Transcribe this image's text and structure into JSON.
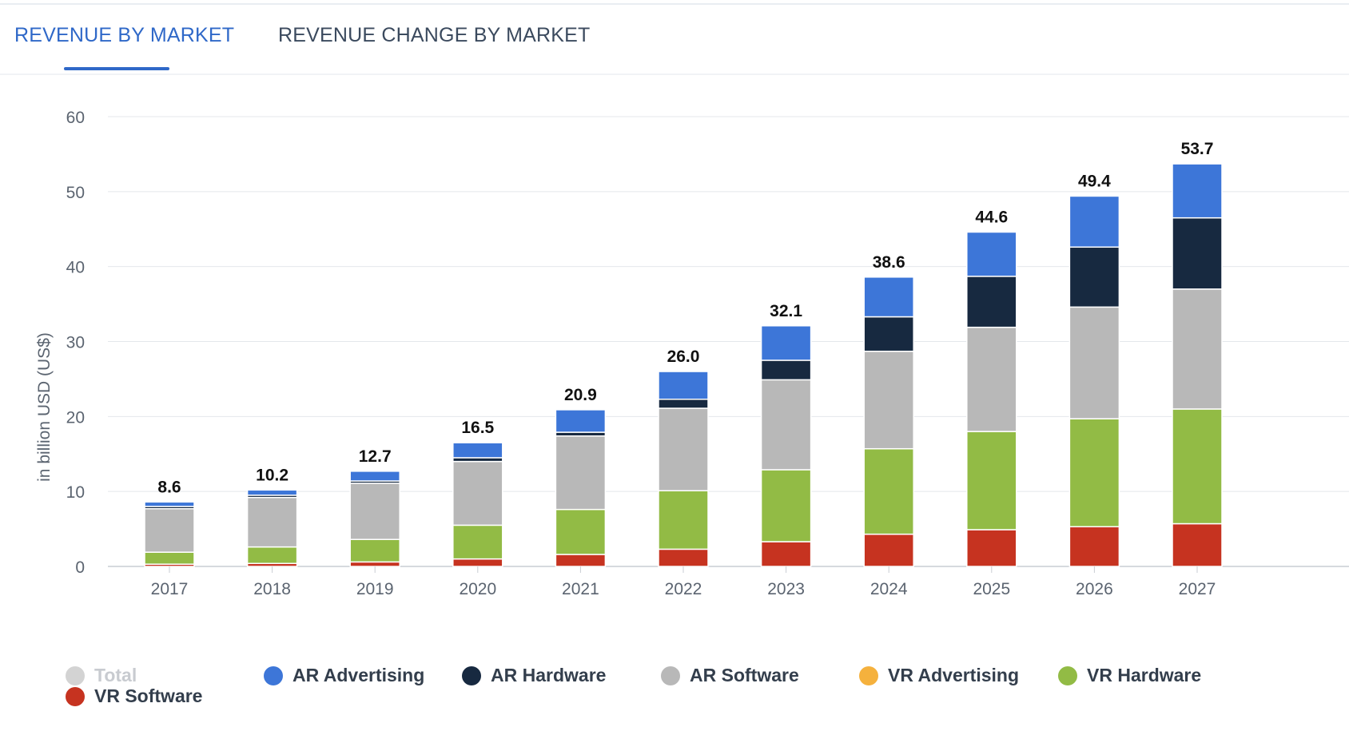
{
  "tabs": [
    {
      "label": "REVENUE BY MARKET",
      "active": true
    },
    {
      "label": "REVENUE CHANGE BY MARKET",
      "active": false
    }
  ],
  "chart_data": {
    "type": "bar",
    "stacked": true,
    "categories": [
      "2017",
      "2018",
      "2019",
      "2020",
      "2021",
      "2022",
      "2023",
      "2024",
      "2025",
      "2026",
      "2027"
    ],
    "ylabel": "in billion USD (US$)",
    "xlabel": "",
    "ylim": [
      0,
      60
    ],
    "yticks": [
      "0",
      "10",
      "20",
      "30",
      "40",
      "50",
      "60"
    ],
    "grid": true,
    "totals": [
      "8.6",
      "10.2",
      "12.7",
      "16.5",
      "20.9",
      "26.0",
      "32.1",
      "38.6",
      "44.6",
      "49.4",
      "53.7"
    ],
    "series": [
      {
        "name": "VR Software",
        "color": "#c63320",
        "values": [
          0.3,
          0.4,
          0.6,
          1.0,
          1.6,
          2.3,
          3.3,
          4.3,
          4.9,
          5.3,
          5.7
        ]
      },
      {
        "name": "VR Hardware",
        "color": "#92bb45",
        "values": [
          1.6,
          2.2,
          3.0,
          4.5,
          6.0,
          7.8,
          9.6,
          11.4,
          13.1,
          14.4,
          15.3
        ]
      },
      {
        "name": "AR Software",
        "color": "#b8b8b8",
        "values": [
          5.8,
          6.6,
          7.5,
          8.5,
          9.8,
          11.0,
          12.0,
          13.0,
          13.9,
          14.9,
          16.0
        ]
      },
      {
        "name": "AR Hardware",
        "color": "#172940",
        "values": [
          0.3,
          0.3,
          0.3,
          0.5,
          0.5,
          1.2,
          2.6,
          4.6,
          6.8,
          8.0,
          9.5
        ]
      },
      {
        "name": "AR Advertising",
        "color": "#3d76d8",
        "values": [
          0.6,
          0.7,
          1.3,
          2.0,
          3.0,
          3.7,
          4.6,
          5.3,
          5.9,
          6.8,
          7.2
        ]
      }
    ],
    "legend": [
      {
        "name": "Total",
        "color": "#d3d3d3",
        "disabled": true
      },
      {
        "name": "AR Advertising",
        "color": "#3d76d8",
        "disabled": false
      },
      {
        "name": "AR Hardware",
        "color": "#172940",
        "disabled": false
      },
      {
        "name": "AR Software",
        "color": "#b8b8b8",
        "disabled": false
      },
      {
        "name": "VR Advertising",
        "color": "#f5b13d",
        "disabled": false
      },
      {
        "name": "VR Hardware",
        "color": "#92bb45",
        "disabled": false
      },
      {
        "name": "VR Software",
        "color": "#c63320",
        "disabled": false
      }
    ],
    "legend_position": "bottom"
  }
}
